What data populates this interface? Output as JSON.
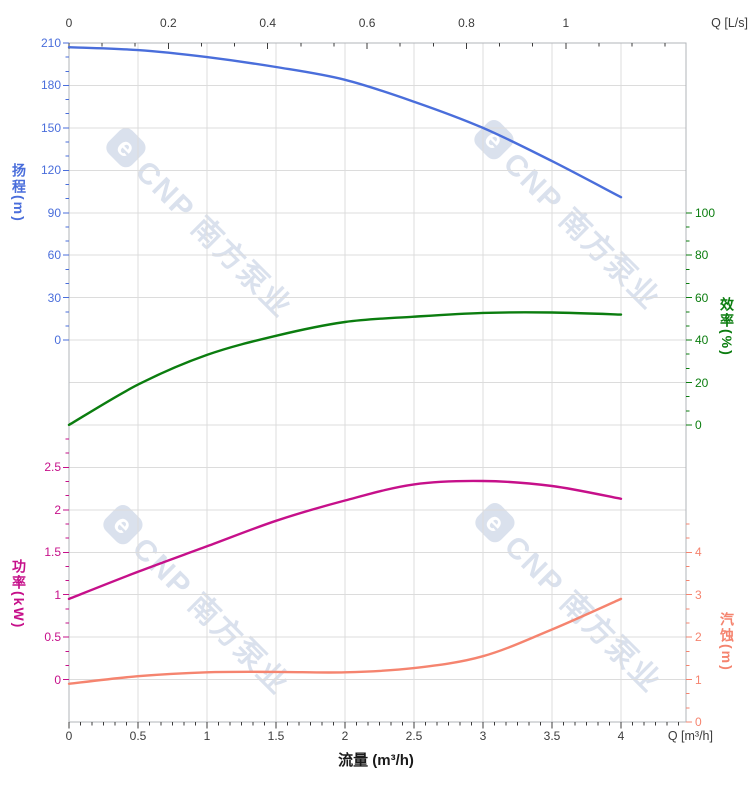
{
  "watermark": {
    "logo_letter": "e",
    "text": "CNP 南方泵业"
  },
  "chart_data": {
    "type": "line",
    "title": "",
    "x_top": {
      "unit_label": "Q [L/s]",
      "ticks": [
        0,
        0.2,
        0.4,
        0.6,
        0.8,
        1
      ],
      "range": [
        0,
        1.24
      ]
    },
    "x_bottom": {
      "unit_label": "Q [m³/h]",
      "title": "流量 (m³/h)",
      "ticks": [
        0,
        0.5,
        1,
        1.5,
        2,
        2.5,
        3,
        3.5,
        4
      ],
      "range": [
        0,
        4.47
      ]
    },
    "x": [
      0,
      0.5,
      1,
      1.5,
      2,
      2.5,
      3,
      3.5,
      4
    ],
    "grid": true,
    "series": [
      {
        "name": "head",
        "label": "扬程(m)",
        "color": "#4a6edb",
        "axis_side": "left",
        "y_ticks": [
          210,
          180,
          150,
          120,
          90,
          60,
          30,
          0
        ],
        "values": [
          207,
          205,
          200,
          193,
          184,
          168.5,
          150,
          126.5,
          101
        ]
      },
      {
        "name": "efficiency",
        "label": "效率(%)",
        "color": "#0b7d0f",
        "axis_side": "right",
        "y_ticks": [
          100,
          80,
          60,
          40,
          20,
          0
        ],
        "values": [
          0,
          19,
          33,
          42,
          48.5,
          51,
          52.8,
          53,
          52
        ]
      },
      {
        "name": "power",
        "label": "功率(kW)",
        "color": "#c6108a",
        "axis_side": "left",
        "y_ticks": [
          2.5,
          2,
          1.5,
          1,
          0.5,
          0
        ],
        "values": [
          0.95,
          1.27,
          1.57,
          1.87,
          2.11,
          2.3,
          2.34,
          2.28,
          2.13
        ]
      },
      {
        "name": "npsh",
        "label": "汽蚀(m)",
        "color": "#f5846f",
        "axis_side": "right",
        "y_ticks": [
          4,
          3,
          2,
          1,
          0
        ],
        "values": [
          0.9,
          1.08,
          1.17,
          1.18,
          1.17,
          1.27,
          1.55,
          2.18,
          2.9
        ]
      }
    ],
    "axis_text_color": "#3c3c3c"
  }
}
